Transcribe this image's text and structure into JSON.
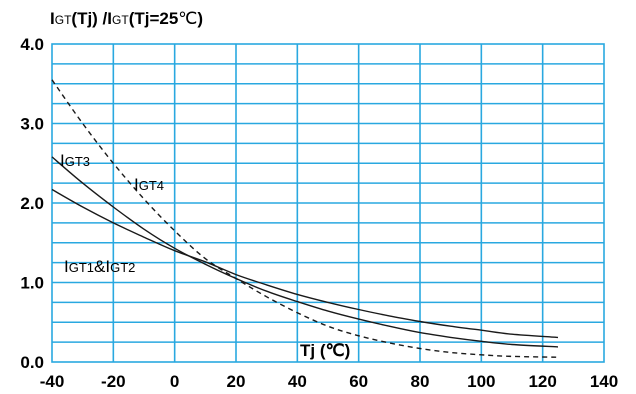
{
  "chart_data": {
    "type": "line",
    "title_parts": {
      "i1": "I",
      "sub1": "GT",
      "mid": "(Tj) /I",
      "sub2": "GT",
      "end": "(Tj=25",
      "unit": "℃",
      "close": ")"
    },
    "xlabel": "Tj (℃)",
    "xlim": [
      -40,
      140
    ],
    "ylim": [
      0,
      4.0
    ],
    "x_ticks": [
      "-40",
      "-20",
      "0",
      "20",
      "40",
      "60",
      "80",
      "100",
      "120",
      "140"
    ],
    "y_ticks": [
      "0.0",
      "1.0",
      "2.0",
      "3.0",
      "4.0"
    ],
    "grid": true,
    "series": [
      {
        "name": "IGT1&IGT2",
        "label_main": "I",
        "label_sub1": "GT1",
        "label_amp": "&I",
        "label_sub2": "GT2",
        "style": "solid",
        "x": [
          -40,
          -30,
          -20,
          -10,
          0,
          10,
          20,
          30,
          40,
          50,
          60,
          70,
          80,
          90,
          100,
          110,
          125
        ],
        "y": [
          2.17,
          1.95,
          1.75,
          1.57,
          1.4,
          1.26,
          1.1,
          0.97,
          0.85,
          0.75,
          0.66,
          0.58,
          0.51,
          0.45,
          0.4,
          0.35,
          0.31
        ]
      },
      {
        "name": "IGT3",
        "label_main": "I",
        "label_sub": "GT3",
        "style": "solid",
        "x": [
          -40,
          -30,
          -20,
          -10,
          0,
          10,
          20,
          30,
          40,
          50,
          60,
          70,
          80,
          90,
          100,
          110,
          125
        ],
        "y": [
          2.58,
          2.25,
          1.95,
          1.67,
          1.43,
          1.23,
          1.05,
          0.89,
          0.76,
          0.64,
          0.54,
          0.45,
          0.37,
          0.31,
          0.26,
          0.22,
          0.19
        ]
      },
      {
        "name": "IGT4",
        "label_main": "I",
        "label_sub": "GT4",
        "style": "dashed",
        "x": [
          -40,
          -30,
          -20,
          -10,
          0,
          10,
          20,
          30,
          40,
          50,
          60,
          70,
          80,
          90,
          100,
          110,
          125
        ],
        "y": [
          3.55,
          3.0,
          2.5,
          2.05,
          1.65,
          1.3,
          1.05,
          0.82,
          0.62,
          0.45,
          0.33,
          0.24,
          0.17,
          0.12,
          0.09,
          0.07,
          0.06
        ]
      }
    ]
  }
}
